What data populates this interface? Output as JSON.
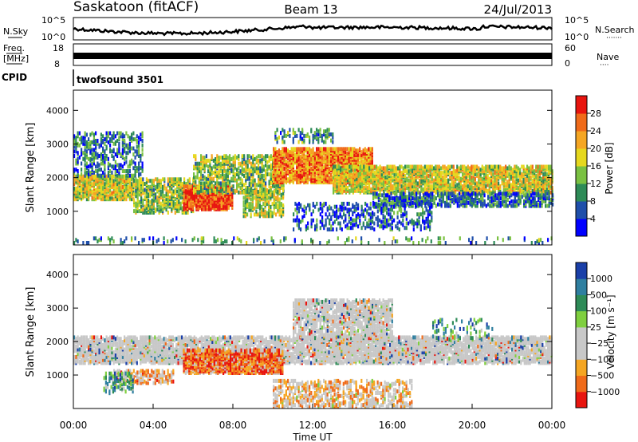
{
  "header": {
    "station": "Saskatoon (fitACF)",
    "beam": "Beam 13",
    "date": "24/Jul/2013"
  },
  "meta_labels": {
    "nsky": "N.Sky",
    "nsearch": "N.Search",
    "freq": "Freq.",
    "freq_unit": "[MHz]",
    "nave": "Nave",
    "cpid": "CPID",
    "cpid_value": "twofsound 3501"
  },
  "meta_ticks": {
    "noise_left": [
      "10^5",
      "10^0"
    ],
    "noise_right": [
      "10^5",
      "10^0"
    ],
    "freq_left": [
      "18",
      "8"
    ],
    "nave_right": [
      "60",
      "0"
    ]
  },
  "chart_data": [
    {
      "type": "heatmap",
      "name": "power",
      "xlabel": "",
      "ylabel": "Slant Range [km]",
      "xlim": [
        0,
        24
      ],
      "ylim": [
        0,
        4600
      ],
      "yticks": [
        1000,
        2000,
        3000,
        4000
      ],
      "yticklabels": [
        "1000",
        "2000",
        "3000",
        "4000"
      ],
      "colorbar": {
        "label": "Power [dB]",
        "ticks": [
          "4",
          "8",
          "12",
          "16",
          "20",
          "24",
          "28"
        ],
        "colors": [
          "#0000ff",
          "#1f4faa",
          "#2e8b57",
          "#7ac142",
          "#e6d81e",
          "#f5a623",
          "#f06b1a",
          "#e8150f"
        ]
      },
      "bands": [
        {
          "t0": 0,
          "t1": 3,
          "r0": 1300,
          "r1": 2000,
          "density": 0.75,
          "level": 0.55
        },
        {
          "t0": 0,
          "t1": 3.5,
          "r0": 2000,
          "r1": 3300,
          "density": 0.35,
          "level": 0.25
        },
        {
          "t0": 3,
          "t1": 6,
          "r0": 900,
          "r1": 1900,
          "density": 0.55,
          "level": 0.45
        },
        {
          "t0": 5.5,
          "t1": 8,
          "r0": 1000,
          "r1": 1700,
          "density": 0.85,
          "level": 0.9
        },
        {
          "t0": 6,
          "t1": 10.5,
          "r0": 1500,
          "r1": 2600,
          "density": 0.5,
          "level": 0.45
        },
        {
          "t0": 8.5,
          "t1": 10.5,
          "r0": 800,
          "r1": 1600,
          "density": 0.5,
          "level": 0.5
        },
        {
          "t0": 10,
          "t1": 15,
          "r0": 1800,
          "r1": 2800,
          "density": 0.8,
          "level": 0.75
        },
        {
          "t0": 10,
          "t1": 13,
          "r0": 3000,
          "r1": 3400,
          "density": 0.3,
          "level": 0.3
        },
        {
          "t0": 13,
          "t1": 24,
          "r0": 1500,
          "r1": 2300,
          "density": 0.7,
          "level": 0.55
        },
        {
          "t0": 15,
          "t1": 24,
          "r0": 1100,
          "r1": 1500,
          "density": 0.55,
          "level": 0.25
        },
        {
          "t0": 11,
          "t1": 18,
          "r0": 400,
          "r1": 1200,
          "density": 0.25,
          "level": 0.2
        },
        {
          "t0": 0,
          "t1": 24,
          "r0": 0,
          "r1": 180,
          "density": 0.15,
          "level": 0.3
        }
      ]
    },
    {
      "type": "heatmap",
      "name": "velocity",
      "xlabel": "Time UT",
      "ylabel": "Slant Range [km]",
      "xlim": [
        0,
        24
      ],
      "ylim": [
        0,
        4600
      ],
      "xticks": [
        "00:00",
        "04:00",
        "08:00",
        "12:00",
        "16:00",
        "20:00",
        "00:00"
      ],
      "yticks": [
        1000,
        2000,
        3000,
        4000
      ],
      "yticklabels": [
        "1000",
        "2000",
        "3000",
        "4000"
      ],
      "colorbar": {
        "label": "Velocity [m s⁻¹]",
        "ticks": [
          "1000",
          "500",
          "100",
          "25",
          "−25",
          "−100",
          "−500",
          "−1000"
        ],
        "colors": [
          "#1a3fa8",
          "#2f7fa0",
          "#2e8b57",
          "#7fcf3f",
          "#c8c8c8",
          "#c8c8c8",
          "#f5a623",
          "#f06b1a",
          "#e8150f"
        ]
      },
      "bands": [
        {
          "t0": 0,
          "t1": 24,
          "r0": 1300,
          "r1": 2100,
          "density": 0.7,
          "level": 0.5
        },
        {
          "t0": 5.5,
          "t1": 10.5,
          "r0": 1000,
          "r1": 1700,
          "density": 0.8,
          "level": 0.82
        },
        {
          "t0": 2,
          "t1": 5,
          "r0": 700,
          "r1": 1100,
          "density": 0.5,
          "level": 0.7
        },
        {
          "t0": 1.5,
          "t1": 3,
          "r0": 400,
          "r1": 1000,
          "density": 0.4,
          "level": 0.3
        },
        {
          "t0": 11,
          "t1": 16,
          "r0": 2000,
          "r1": 3200,
          "density": 0.6,
          "level": 0.5
        },
        {
          "t0": 10,
          "t1": 17,
          "r0": 0,
          "r1": 800,
          "density": 0.35,
          "level": 0.65
        },
        {
          "t0": 18,
          "t1": 21,
          "r0": 2000,
          "r1": 2600,
          "density": 0.2,
          "level": 0.25
        }
      ]
    }
  ]
}
